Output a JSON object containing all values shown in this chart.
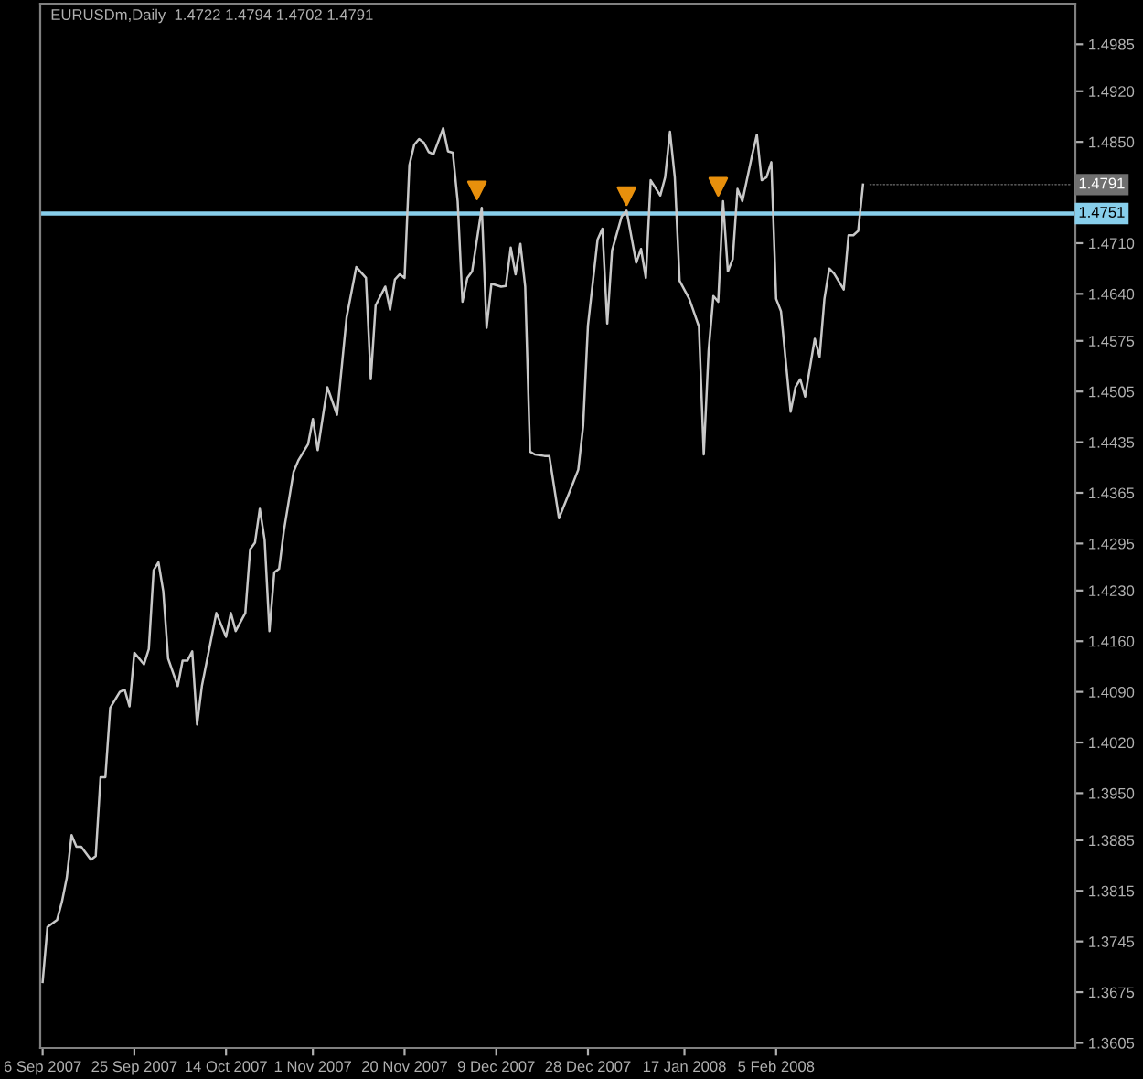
{
  "chart_data": {
    "type": "line",
    "title": "EURUSDm,Daily  1.4722 1.4794 1.4702 1.4791",
    "series": [
      {
        "color": "#c8c8c8",
        "x": [
          "2007-09-06",
          "2007-09-07",
          "2007-09-09",
          "2007-09-10",
          "2007-09-11",
          "2007-09-12",
          "2007-09-13",
          "2007-09-14",
          "2007-09-16",
          "2007-09-17",
          "2007-09-18",
          "2007-09-19",
          "2007-09-20",
          "2007-09-22",
          "2007-09-23",
          "2007-09-24",
          "2007-09-25",
          "2007-09-27",
          "2007-09-28",
          "2007-09-29",
          "2007-09-30",
          "2007-10-01",
          "2007-10-02",
          "2007-10-04",
          "2007-10-05",
          "2007-10-06",
          "2007-10-07",
          "2007-10-08",
          "2007-10-09",
          "2007-10-12",
          "2007-10-14",
          "2007-10-15",
          "2007-10-16",
          "2007-10-18",
          "2007-10-19",
          "2007-10-20",
          "2007-10-21",
          "2007-10-22",
          "2007-10-23",
          "2007-10-24",
          "2007-10-25",
          "2007-10-26",
          "2007-10-28",
          "2007-10-29",
          "2007-10-31",
          "2007-11-01",
          "2007-11-02",
          "2007-11-04",
          "2007-11-06",
          "2007-11-07",
          "2007-11-08",
          "2007-11-10",
          "2007-11-12",
          "2007-11-13",
          "2007-11-14",
          "2007-11-16",
          "2007-11-17",
          "2007-11-18",
          "2007-11-19",
          "2007-11-20",
          "2007-11-21",
          "2007-11-22",
          "2007-11-23",
          "2007-11-24",
          "2007-11-25",
          "2007-11-26",
          "2007-11-28",
          "2007-11-29",
          "2007-11-30",
          "2007-12-01",
          "2007-12-02",
          "2007-12-03",
          "2007-12-04",
          "2007-12-06",
          "2007-12-07",
          "2007-12-08",
          "2007-12-10",
          "2007-12-11",
          "2007-12-12",
          "2007-12-13",
          "2007-12-14",
          "2007-12-15",
          "2007-12-16",
          "2007-12-17",
          "2007-12-19",
          "2007-12-20",
          "2007-12-22",
          "2007-12-24",
          "2007-12-26",
          "2007-12-27",
          "2007-12-28",
          "2007-12-30",
          "2007-12-31",
          "2008-01-01",
          "2008-01-02",
          "2008-01-04",
          "2008-01-05",
          "2008-01-07",
          "2008-01-08",
          "2008-01-09",
          "2008-01-10",
          "2008-01-12",
          "2008-01-13",
          "2008-01-14",
          "2008-01-15",
          "2008-01-16",
          "2008-01-18",
          "2008-01-20",
          "2008-01-21",
          "2008-01-22",
          "2008-01-23",
          "2008-01-24",
          "2008-01-25",
          "2008-01-26",
          "2008-01-27",
          "2008-01-28",
          "2008-01-29",
          "2008-01-31",
          "2008-02-01",
          "2008-02-02",
          "2008-02-03",
          "2008-02-04",
          "2008-02-05",
          "2008-02-06",
          "2008-02-08",
          "2008-02-09",
          "2008-02-10",
          "2008-02-11",
          "2008-02-13",
          "2008-02-14",
          "2008-02-15",
          "2008-02-16",
          "2008-02-17",
          "2008-02-19",
          "2008-02-20",
          "2008-02-21",
          "2008-02-22",
          "2008-02-23"
        ],
        "values": [
          1.3689,
          1.3765,
          1.3775,
          1.38,
          1.3833,
          1.3892,
          1.3876,
          1.3876,
          1.3858,
          1.3863,
          1.3972,
          1.3972,
          1.4068,
          1.409,
          1.4093,
          1.407,
          1.4144,
          1.4128,
          1.4149,
          1.4258,
          1.4269,
          1.4229,
          1.4136,
          1.4098,
          1.4133,
          1.4133,
          1.4146,
          1.4045,
          1.4098,
          1.4199,
          1.4166,
          1.4199,
          1.4174,
          1.4199,
          1.4287,
          1.4296,
          1.4343,
          1.43,
          1.4174,
          1.4255,
          1.426,
          1.4313,
          1.4394,
          1.441,
          1.4432,
          1.4467,
          1.4424,
          1.4511,
          1.4473,
          1.454,
          1.4608,
          1.4677,
          1.4662,
          1.4522,
          1.4624,
          1.465,
          1.4618,
          1.466,
          1.4667,
          1.4662,
          1.4818,
          1.4846,
          1.4854,
          1.4849,
          1.4836,
          1.4833,
          1.4869,
          1.4837,
          1.4835,
          1.4768,
          1.4629,
          1.4662,
          1.4671,
          1.4759,
          1.4593,
          1.4654,
          1.465,
          1.4651,
          1.4704,
          1.4667,
          1.4709,
          1.465,
          1.4422,
          1.4418,
          1.4416,
          1.4416,
          1.433,
          1.4363,
          1.4397,
          1.4457,
          1.4596,
          1.4715,
          1.473,
          1.4599,
          1.47,
          1.4747,
          1.4755,
          1.4683,
          1.4702,
          1.4662,
          1.4797,
          1.4776,
          1.4801,
          1.4864,
          1.4801,
          1.4658,
          1.4633,
          1.4595,
          1.4418,
          1.4561,
          1.4637,
          1.4629,
          1.4768,
          1.4671,
          1.4688,
          1.4785,
          1.4768,
          1.4831,
          1.486,
          1.4797,
          1.4801,
          1.4822,
          1.4633,
          1.4616,
          1.4477,
          1.4511,
          1.4522,
          1.4498,
          1.4578,
          1.4553,
          1.4633,
          1.4675,
          1.4668,
          1.4646,
          1.4721,
          1.4721,
          1.4727,
          1.4791
        ]
      },
      {
        "type": "scatter",
        "color": "#e8900c",
        "marker": "triangle",
        "x": [
          "2007-12-05",
          "2008-01-05",
          "2008-01-24"
        ],
        "values": [
          1.4783,
          1.4775,
          1.4788
        ]
      }
    ],
    "xlim": [
      "2007-09-05T12:00",
      "2008-04-07"
    ],
    "xticks": [
      {
        "value": "2007-09-06",
        "label": "6 Sep 2007"
      },
      {
        "value": "2007-09-25",
        "label": "25 Sep 2007"
      },
      {
        "value": "2007-10-14",
        "label": "14 Oct 2007"
      },
      {
        "value": "2007-11-01",
        "label": "1 Nov 2007"
      },
      {
        "value": "2007-11-20",
        "label": "20 Nov 2007"
      },
      {
        "value": "2007-12-09",
        "label": "9 Dec 2007"
      },
      {
        "value": "2007-12-28",
        "label": "28 Dec 2007"
      },
      {
        "value": "2008-01-17",
        "label": "17 Jan 2008"
      },
      {
        "value": "2008-02-05",
        "label": "5 Feb 2008"
      }
    ],
    "ylim": [
      1.3598,
      1.5041
    ],
    "yticks": [
      {
        "value": 1.3605,
        "label": "1.3605"
      },
      {
        "value": 1.3675,
        "label": "1.3675"
      },
      {
        "value": 1.3745,
        "label": "1.3745"
      },
      {
        "value": 1.3815,
        "label": "1.3815"
      },
      {
        "value": 1.3885,
        "label": "1.3885"
      },
      {
        "value": 1.395,
        "label": "1.3950"
      },
      {
        "value": 1.402,
        "label": "1.4020"
      },
      {
        "value": 1.409,
        "label": "1.4090"
      },
      {
        "value": 1.416,
        "label": "1.4160"
      },
      {
        "value": 1.423,
        "label": "1.4230"
      },
      {
        "value": 1.4295,
        "label": "1.4295"
      },
      {
        "value": 1.4365,
        "label": "1.4365"
      },
      {
        "value": 1.4435,
        "label": "1.4435"
      },
      {
        "value": 1.4505,
        "label": "1.4505"
      },
      {
        "value": 1.4575,
        "label": "1.4575"
      },
      {
        "value": 1.464,
        "label": "1.4640"
      },
      {
        "value": 1.471,
        "label": "1.4710"
      },
      {
        "value": 1.485,
        "label": "1.4850"
      },
      {
        "value": 1.492,
        "label": "1.4920"
      },
      {
        "value": 1.4985,
        "label": "1.4985"
      }
    ],
    "ref_lines": [
      {
        "axis": "y",
        "value": 1.4751,
        "label": "1.4751",
        "color": "#87ceeb",
        "line_style": "solid"
      }
    ],
    "annotations": [
      {
        "text": "1.4791",
        "x": "2008-02-23",
        "y": 1.4791
      }
    ],
    "grid": false,
    "legend": false
  }
}
